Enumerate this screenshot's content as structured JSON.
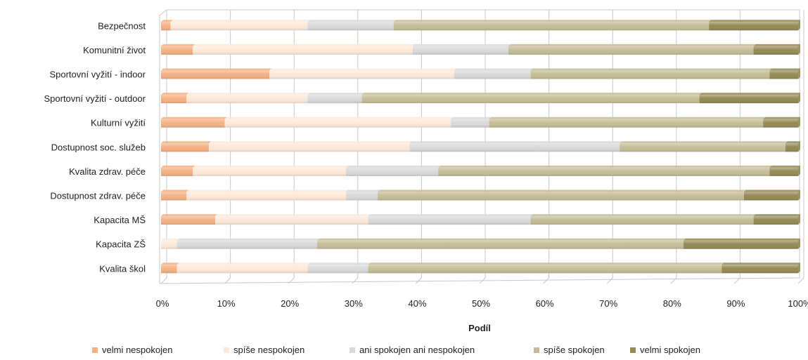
{
  "chart_data": {
    "type": "bar",
    "orientation": "horizontal",
    "stacked": "percent",
    "title": "",
    "xlabel": "Podíl",
    "ylabel": "",
    "xlim": [
      0,
      100
    ],
    "x_ticks": [
      "0%",
      "10%",
      "20%",
      "30%",
      "40%",
      "50%",
      "60%",
      "70%",
      "80%",
      "90%",
      "100%"
    ],
    "grid": true,
    "legend_position": "bottom",
    "categories": [
      "Bezpečnost",
      "Komunitní život",
      "Sportovní vyžití - indoor",
      "Sportovní vyžití - outdoor",
      "Kulturní vyžití",
      "Dostupnost soc. služeb",
      "Kvalita zdrav. péče",
      "Dostupnost zdrav. péče",
      "Kapacita MŠ",
      "Kapacita ZŠ",
      "Kvalita škol"
    ],
    "series": [
      {
        "name": "velmi nespokojen",
        "color": "#f4b183",
        "values": [
          1.5,
          5,
          17,
          4,
          10,
          7.5,
          5,
          4,
          8.5,
          0,
          2.5
        ]
      },
      {
        "name": "spíše nespokojen",
        "color": "#fde9d9",
        "values": [
          21.5,
          34.5,
          29,
          19,
          35.5,
          31.5,
          24,
          25,
          24,
          2.5,
          20.5
        ]
      },
      {
        "name": "ani spokojen ani nespokojen",
        "color": "#d9d9d9",
        "values": [
          13.5,
          15,
          12,
          8.5,
          6,
          33,
          14.5,
          5,
          25.5,
          22,
          9.5
        ]
      },
      {
        "name": "spíše spokojen",
        "color": "#c4bd97",
        "values": [
          49.5,
          38.5,
          37.5,
          53,
          43,
          26,
          52,
          57.5,
          35,
          57.5,
          55.5
        ]
      },
      {
        "name": "velmi spokojen",
        "color": "#948a54",
        "values": [
          14,
          7,
          4.5,
          15.5,
          5.5,
          2,
          4.5,
          8.5,
          7,
          18,
          12
        ]
      }
    ]
  }
}
